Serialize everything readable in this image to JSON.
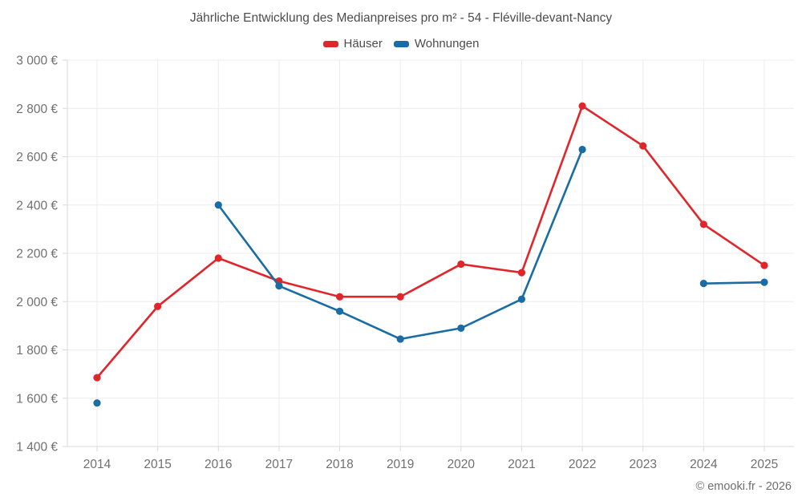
{
  "title": "Jährliche Entwicklung des Medianpreises pro m² - 54 - Fléville-devant-Nancy",
  "copyright": "© emooki.fr - 2026",
  "chart_data": {
    "type": "line",
    "title": "Jährliche Entwicklung des Medianpreises pro m² - 54 - Fléville-devant-Nancy",
    "x": [
      "2014",
      "2015",
      "2016",
      "2017",
      "2018",
      "2019",
      "2020",
      "2021",
      "2022",
      "2023",
      "2024",
      "2025"
    ],
    "series": [
      {
        "name": "Häuser",
        "color": "#e0262a",
        "values": [
          1685,
          1980,
          2180,
          2085,
          2020,
          2020,
          2155,
          2120,
          2810,
          2645,
          2320,
          2150
        ]
      },
      {
        "name": "Wohnungen",
        "color": "#1a6ca4",
        "values": [
          1580,
          null,
          2400,
          2065,
          1960,
          1845,
          1890,
          2010,
          2630,
          null,
          2075,
          2080
        ]
      }
    ],
    "ylim": [
      1400,
      3000
    ],
    "ytick_step": 200,
    "ytick_labels": [
      "1 400 €",
      "1 600 €",
      "1 800 €",
      "2 000 €",
      "2 200 €",
      "2 400 €",
      "2 600 €",
      "2 800 €",
      "3 000 €"
    ],
    "ytick_suffix": " €",
    "grid": true,
    "legend_position": "top",
    "grid_color": "#ececec",
    "axis_color": "#d9d9d9"
  }
}
